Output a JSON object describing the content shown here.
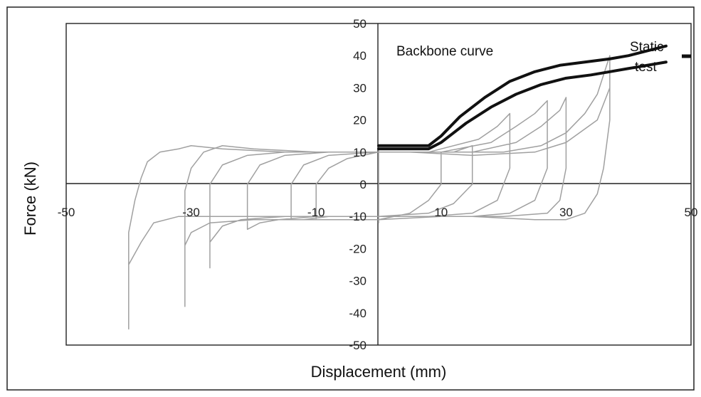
{
  "chart_data": {
    "type": "line",
    "title": "",
    "xlabel": "Displacement (mm)",
    "ylabel": "Force (kN)",
    "xlim": [
      -50,
      50
    ],
    "ylim": [
      -50,
      50
    ],
    "xticks": [
      -50,
      -30,
      -10,
      10,
      30,
      50
    ],
    "xtick_labels": [
      "-50",
      "-30",
      "-10",
      "10",
      "30",
      "50"
    ],
    "yticks": [
      50,
      40,
      30,
      20,
      10,
      0,
      -10,
      -20,
      -30,
      -40,
      -50
    ],
    "ytick_labels": [
      "50",
      "40",
      "30",
      "20",
      "10",
      "0",
      "-10",
      "-20",
      "-30",
      "-40",
      "-50"
    ],
    "grid": false,
    "annotations": [
      "Backbone curve",
      "Static test"
    ],
    "series": [
      {
        "color": "#a0a0a0",
        "values_xy": [
          [
            0,
            0
          ],
          [
            0,
            10
          ],
          [
            0,
            -10
          ],
          [
            0,
            12
          ],
          [
            0,
            -12
          ],
          [
            0,
            10
          ],
          [
            1,
            10
          ],
          [
            2,
            10
          ],
          [
            3,
            10
          ],
          [
            4,
            10
          ],
          [
            5,
            10
          ],
          [
            6,
            10
          ],
          [
            7,
            10
          ],
          [
            8,
            10
          ],
          [
            9,
            10
          ],
          [
            10,
            10
          ],
          [
            10,
            0
          ],
          [
            8,
            -5
          ],
          [
            5,
            -9
          ],
          [
            0,
            -11
          ],
          [
            -5,
            -11
          ],
          [
            -10,
            -11
          ],
          [
            -10,
            0
          ],
          [
            -8,
            5
          ],
          [
            -5,
            8
          ],
          [
            0,
            10
          ],
          [
            5,
            10
          ],
          [
            12,
            10
          ],
          [
            15,
            12
          ],
          [
            15,
            0
          ],
          [
            12,
            -6
          ],
          [
            8,
            -9
          ],
          [
            0,
            -10
          ],
          [
            -8,
            -10
          ],
          [
            -12,
            -11
          ],
          [
            -14,
            -11
          ],
          [
            -14,
            0
          ],
          [
            -12,
            6
          ],
          [
            -8,
            9
          ],
          [
            0,
            10
          ],
          [
            8,
            10
          ],
          [
            16,
            14
          ],
          [
            19,
            18
          ],
          [
            21,
            22
          ],
          [
            21,
            5
          ],
          [
            19,
            -5
          ],
          [
            15,
            -9
          ],
          [
            8,
            -10
          ],
          [
            0,
            -10
          ],
          [
            -10,
            -10
          ],
          [
            -16,
            -11
          ],
          [
            -19,
            -12
          ],
          [
            -21,
            -14
          ],
          [
            -21,
            0
          ],
          [
            -19,
            6
          ],
          [
            -15,
            9
          ],
          [
            -8,
            10
          ],
          [
            0,
            10
          ],
          [
            10,
            10
          ],
          [
            18,
            13
          ],
          [
            22,
            18
          ],
          [
            25,
            22
          ],
          [
            27,
            26
          ],
          [
            27,
            5
          ],
          [
            25,
            -5
          ],
          [
            21,
            -9
          ],
          [
            15,
            -10
          ],
          [
            5,
            -10
          ],
          [
            -5,
            -10
          ],
          [
            -15,
            -10
          ],
          [
            -22,
            -11
          ],
          [
            -25,
            -13
          ],
          [
            -27,
            -18
          ],
          [
            -27,
            -26
          ],
          [
            -27,
            0
          ],
          [
            -25,
            6
          ],
          [
            -21,
            9
          ],
          [
            -15,
            10
          ],
          [
            -5,
            10
          ],
          [
            5,
            10
          ],
          [
            15,
            10
          ],
          [
            22,
            13
          ],
          [
            26,
            18
          ],
          [
            29,
            23
          ],
          [
            30,
            27
          ],
          [
            30,
            15
          ],
          [
            30,
            5
          ],
          [
            29,
            -5
          ],
          [
            27,
            -9
          ],
          [
            20,
            -10
          ],
          [
            10,
            -10
          ],
          [
            0,
            -11
          ],
          [
            -10,
            -11
          ],
          [
            -20,
            -11
          ],
          [
            -27,
            -12
          ],
          [
            -30,
            -15
          ],
          [
            -31,
            -19
          ],
          [
            -31,
            -38
          ],
          [
            -31,
            -2
          ],
          [
            -30,
            5
          ],
          [
            -28,
            10
          ],
          [
            -25,
            12
          ],
          [
            -20,
            11
          ],
          [
            -10,
            10
          ],
          [
            0,
            10
          ],
          [
            10,
            10
          ],
          [
            20,
            10
          ],
          [
            26,
            12
          ],
          [
            30,
            16
          ],
          [
            33,
            22
          ],
          [
            35,
            28
          ],
          [
            37,
            40
          ],
          [
            37,
            34
          ],
          [
            37,
            20
          ],
          [
            36,
            5
          ],
          [
            35,
            -3
          ],
          [
            33,
            -9
          ],
          [
            30,
            -11
          ],
          [
            25,
            -11
          ],
          [
            15,
            -10
          ],
          [
            5,
            -10
          ],
          [
            -5,
            -10
          ],
          [
            -15,
            -10
          ],
          [
            -25,
            -10
          ],
          [
            -32,
            -10
          ],
          [
            -36,
            -12
          ],
          [
            -38,
            -18
          ],
          [
            -40,
            -25
          ],
          [
            -40,
            -38
          ],
          [
            -40,
            -45
          ],
          [
            -40,
            -15
          ],
          [
            -39,
            -5
          ],
          [
            -38,
            2
          ],
          [
            -37,
            7
          ],
          [
            -35,
            10
          ],
          [
            -32,
            11
          ],
          [
            -30,
            12
          ],
          [
            -25,
            11
          ],
          [
            -15,
            10
          ],
          [
            -5,
            10
          ],
          [
            5,
            10
          ],
          [
            15,
            9
          ],
          [
            25,
            10
          ],
          [
            30,
            13
          ],
          [
            35,
            20
          ],
          [
            37,
            30
          ],
          [
            37,
            40
          ]
        ]
      },
      {
        "name": "Backbone curve",
        "color": "#111111",
        "values_xy": [
          [
            0,
            12
          ],
          [
            2,
            12
          ],
          [
            4,
            12
          ],
          [
            6,
            12
          ],
          [
            8,
            12
          ],
          [
            10,
            15
          ],
          [
            13,
            21
          ],
          [
            17,
            27
          ],
          [
            21,
            32
          ],
          [
            25,
            35
          ],
          [
            29,
            37
          ],
          [
            33,
            38
          ],
          [
            37,
            39
          ],
          [
            40,
            40
          ],
          [
            42,
            41
          ],
          [
            44,
            42
          ],
          [
            46,
            43
          ]
        ]
      },
      {
        "name": "Static test",
        "color": "#111111",
        "values_xy": [
          [
            0,
            11
          ],
          [
            2,
            11
          ],
          [
            4,
            11
          ],
          [
            6,
            11
          ],
          [
            8,
            11
          ],
          [
            10,
            13
          ],
          [
            14,
            19
          ],
          [
            18,
            24
          ],
          [
            22,
            28
          ],
          [
            26,
            31
          ],
          [
            30,
            33
          ],
          [
            34,
            34
          ],
          [
            37,
            35
          ],
          [
            40,
            36
          ],
          [
            43,
            37
          ],
          [
            46,
            38
          ]
        ]
      }
    ]
  }
}
